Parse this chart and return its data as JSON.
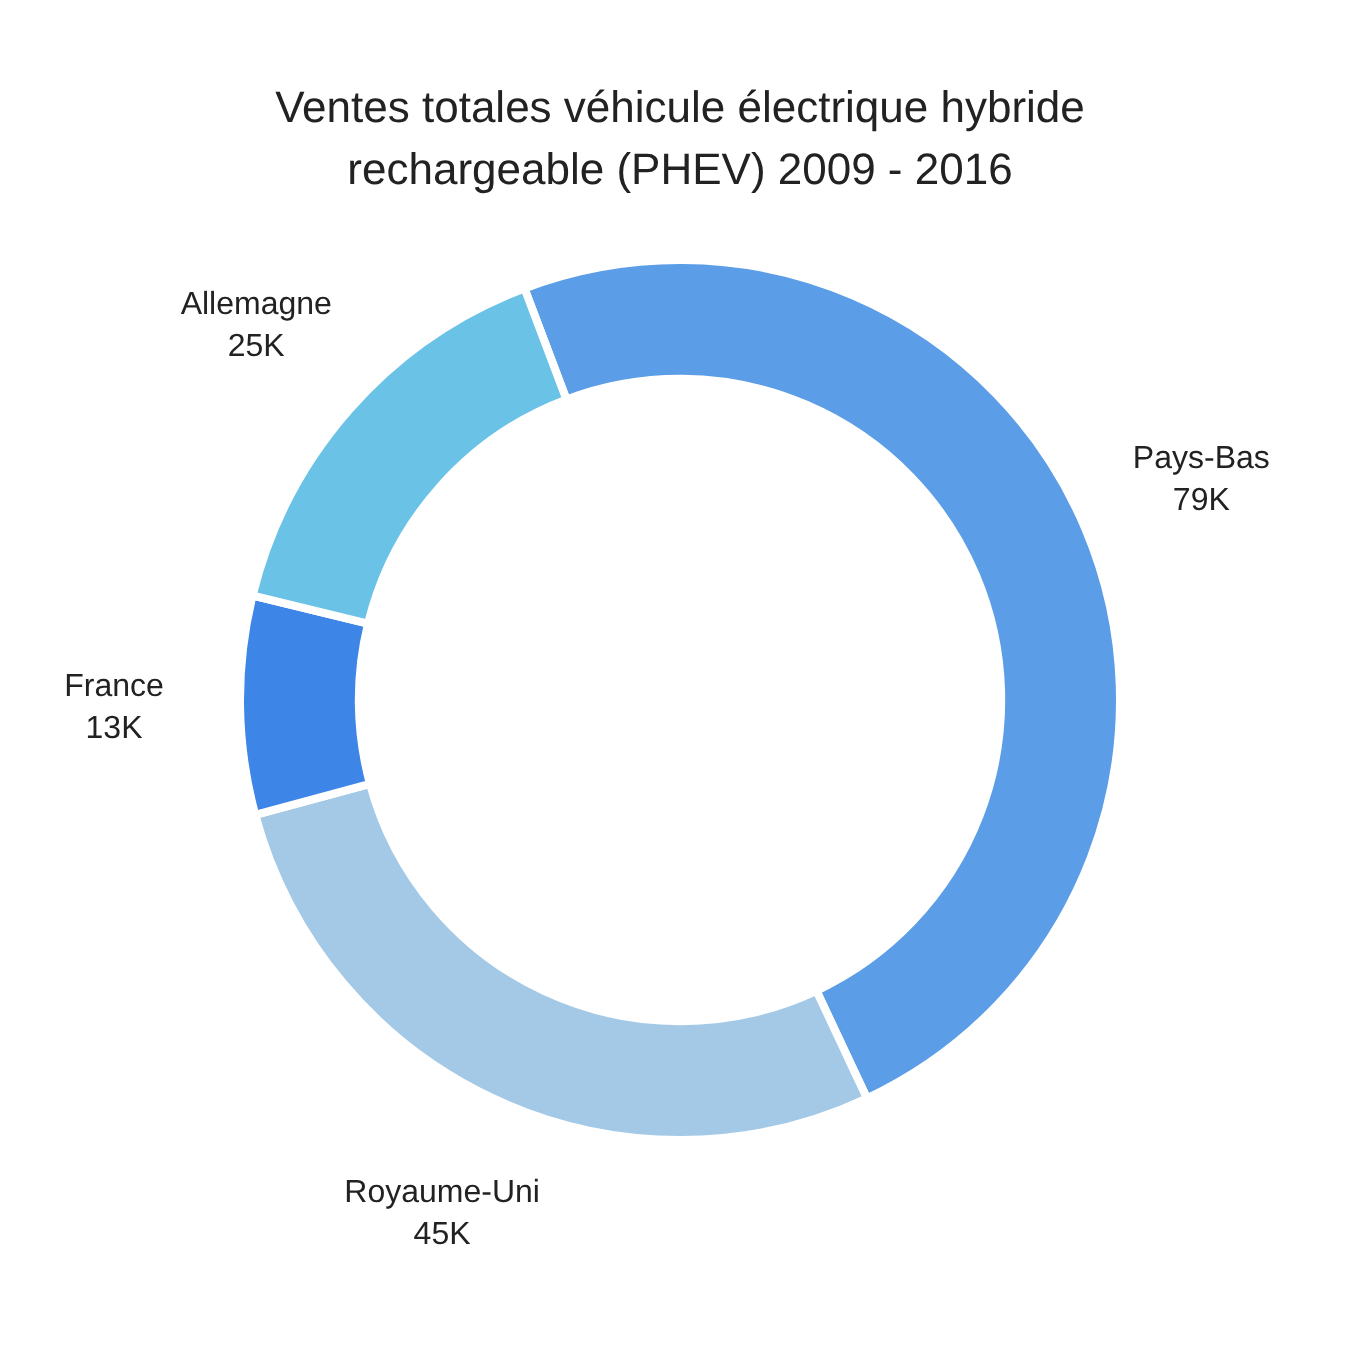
{
  "chart_data": {
    "type": "donut",
    "title": "Ventes totales véhicule électrique hybride rechargeable (PHEV) 2009 - 2016",
    "categories": [
      "Pays-Bas",
      "Royaume-Uni",
      "France",
      "Allemagne"
    ],
    "values": [
      79,
      45,
      13,
      25
    ],
    "value_labels": [
      "79K",
      "45K",
      "13K",
      "25K"
    ],
    "colors": [
      "#5b9de6",
      "#a3c9e6",
      "#3d85e6",
      "#6ac2e6"
    ],
    "legend": false
  }
}
